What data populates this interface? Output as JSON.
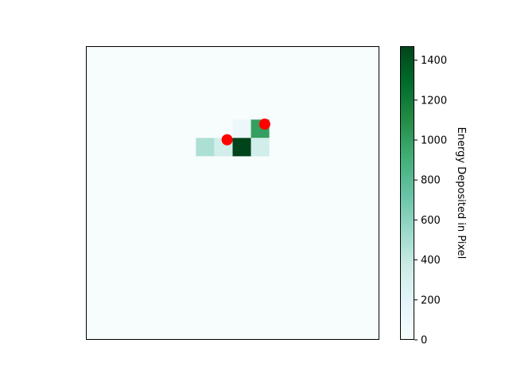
{
  "chart_data": {
    "type": "heatmap",
    "title": "",
    "xlabel": "",
    "ylabel": "",
    "grid": false,
    "axes_ticks_shown": false,
    "x_bins": 16,
    "y_bins": 16,
    "cells": [
      {
        "col": 8,
        "row": 4,
        "value": 120
      },
      {
        "col": 9,
        "row": 4,
        "value": 1000
      },
      {
        "col": 6,
        "row": 5,
        "value": 480
      },
      {
        "col": 7,
        "row": 5,
        "value": 320
      },
      {
        "col": 8,
        "row": 5,
        "value": 1470
      },
      {
        "col": 9,
        "row": 5,
        "value": 330
      }
    ],
    "markers": [
      {
        "col": 7.7,
        "row": 5.1,
        "color": "#ff0000"
      },
      {
        "col": 9.75,
        "row": 4.25,
        "color": "#ff0000"
      }
    ],
    "colorbar": {
      "label": "Energy Deposited in Pixel",
      "min": 0,
      "max": 1470,
      "ticks": [
        0,
        200,
        400,
        600,
        800,
        1000,
        1200,
        1400
      ],
      "colormap": "BuGn",
      "stops": [
        "#f7fcfd",
        "#e5f5f9",
        "#ccece6",
        "#99d8c9",
        "#66c2a4",
        "#41ae76",
        "#238b45",
        "#006d2c",
        "#00441b"
      ]
    }
  }
}
